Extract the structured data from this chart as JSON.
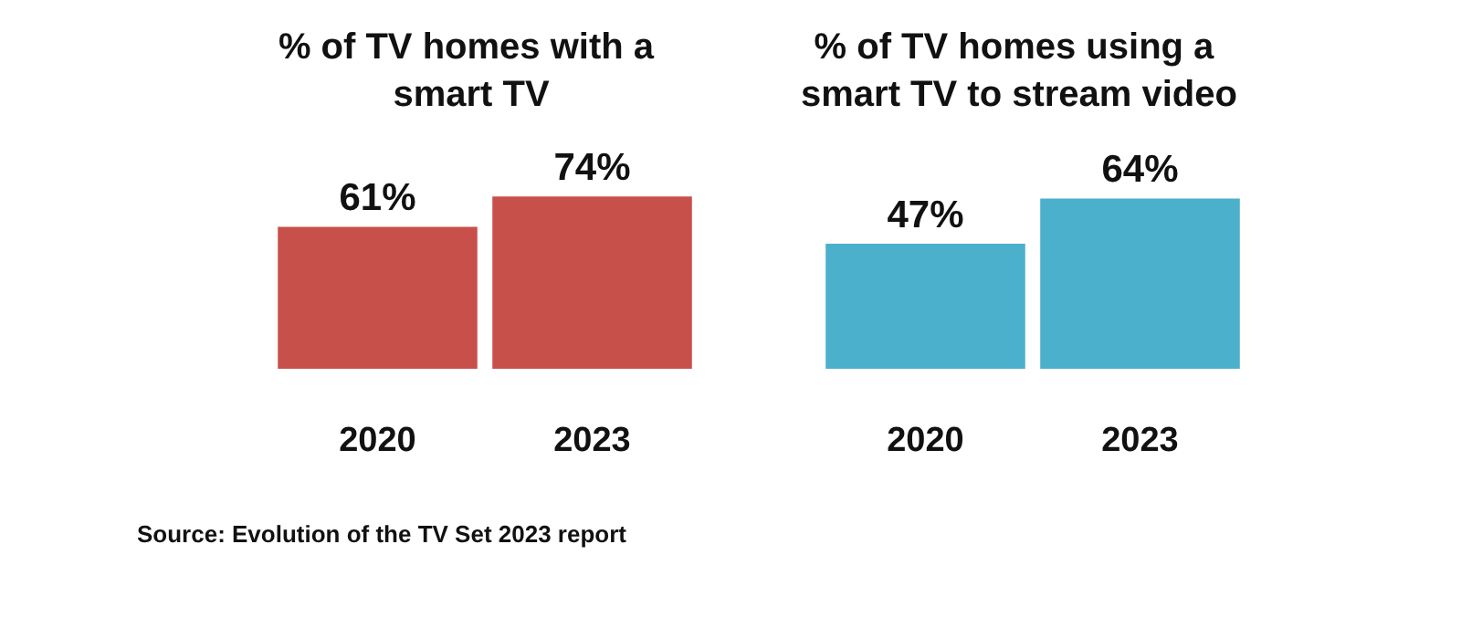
{
  "chart_data": [
    {
      "type": "bar",
      "title": "% of TV homes with a smart TV",
      "categories": [
        "2020",
        "2023"
      ],
      "values": [
        61,
        74
      ],
      "value_labels": [
        "61%",
        "74%"
      ],
      "color": "#c8504a",
      "annotations": [
        "Source: Evolution of the TV Set 2023 report"
      ]
    },
    {
      "type": "bar",
      "title": "% of TV homes using a smart TV to stream video",
      "categories": [
        "2020",
        "2023"
      ],
      "values": [
        47,
        64
      ],
      "value_labels": [
        "47%",
        "64%"
      ],
      "color": "#4bb0cc"
    }
  ]
}
